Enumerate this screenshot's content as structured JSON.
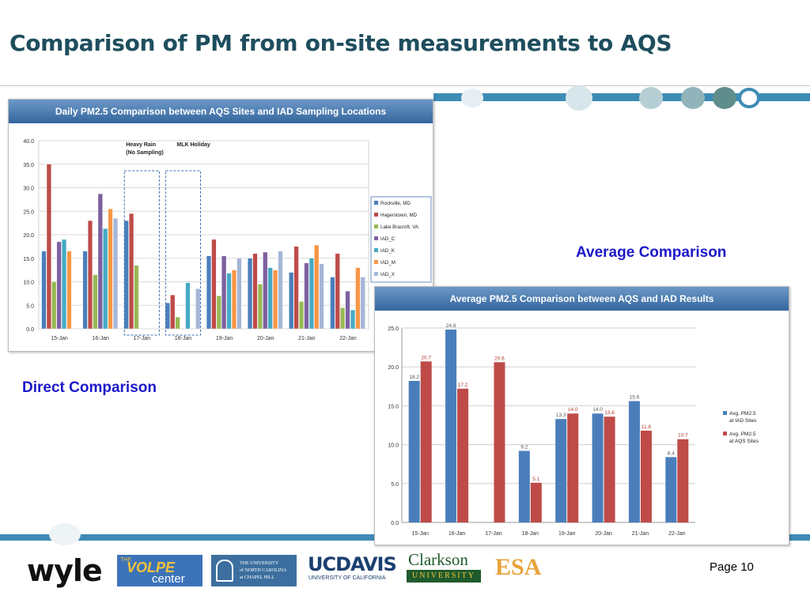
{
  "slide": {
    "title": "Comparison of PM from on-site measurements to AQS",
    "page": "Page 10",
    "caption_direct": "Direct Comparison",
    "caption_average": "Average Comparison"
  },
  "logos": {
    "wyle": "wyle",
    "volpe_the": "THE",
    "volpe": "VOLPE",
    "volpe_center": "center",
    "unc_line1": "THE UNIVERSITY",
    "unc_line2": "of NORTH CAROLINA",
    "unc_line3": "at CHAPEL HILL",
    "ucdavis": "UCDAVIS",
    "ucdavis_sub": "UNIVERSITY OF CALIFORNIA",
    "clarkson": "Clarkson",
    "clarkson_sub": "UNIVERSITY",
    "esa": "ESA"
  },
  "colors": {
    "title": "#1e4e5e",
    "accent_band": "#3d8bb5",
    "caption": "#1c19c8",
    "header_blue": "#34669d"
  },
  "chart_data": [
    {
      "type": "bar",
      "title": "Daily PM2.5 Comparison  between AQS Sites and IAD Sampling Locations",
      "categories": [
        "15-Jan",
        "16-Jan",
        "17-Jan",
        "18-Jan",
        "19-Jan",
        "20-Jan",
        "21-Jan",
        "22-Jan"
      ],
      "ylim": [
        0,
        40
      ],
      "yticks": [
        "0.0",
        "5.0",
        "10.0",
        "15.0",
        "20.0",
        "25.0",
        "30.0",
        "35.0",
        "40.0"
      ],
      "grid": true,
      "legend_position": "right",
      "series": [
        {
          "name": "Rockville, MD",
          "color": "#4a7ebb",
          "values": [
            16.5,
            16.5,
            23.0,
            5.5,
            15.5,
            15.0,
            12.0,
            11.0
          ]
        },
        {
          "name": "Hagerstown, MD",
          "color": "#be4b48",
          "values": [
            35.0,
            23.0,
            24.5,
            7.2,
            19.0,
            16.0,
            17.5,
            16.0
          ]
        },
        {
          "name": "Lake Bracroft, VA",
          "color": "#98b954",
          "values": [
            10.0,
            11.5,
            13.5,
            2.5,
            7.0,
            9.5,
            5.8,
            4.5
          ]
        },
        {
          "name": "IAD_C",
          "color": "#7d60a0",
          "values": [
            18.5,
            28.7,
            null,
            null,
            15.5,
            16.3,
            14.0,
            8.0
          ]
        },
        {
          "name": "IAD_K",
          "color": "#46aac5",
          "values": [
            19.0,
            21.3,
            null,
            9.8,
            11.8,
            13.0,
            15.0,
            4.0
          ]
        },
        {
          "name": "IAD_M",
          "color": "#f79646",
          "values": [
            16.5,
            25.5,
            null,
            null,
            12.5,
            12.5,
            17.8,
            13.0
          ]
        },
        {
          "name": "IAD_X",
          "color": "#a5b6d7",
          "values": [
            null,
            23.5,
            null,
            8.5,
            15.0,
            16.5,
            13.8,
            11.0
          ]
        }
      ],
      "annotations": [
        {
          "category": "17-Jan",
          "line1": "Heavy Rain",
          "line2": "(No Sampling)"
        },
        {
          "category": "18-Jan",
          "line1": "MLK Holiday",
          "line2": ""
        }
      ]
    },
    {
      "type": "bar",
      "title": "Average PM2.5 Comparison  between AQS and IAD Results",
      "categories": [
        "15-Jan",
        "16-Jan",
        "17-Jan",
        "18-Jan",
        "19-Jan",
        "20-Jan",
        "21-Jan",
        "22-Jan"
      ],
      "ylim": [
        0,
        25
      ],
      "yticks": [
        "0.0",
        "5.0",
        "10.0",
        "15.0",
        "20.0",
        "25.0"
      ],
      "grid": true,
      "legend_position": "right",
      "series": [
        {
          "name": "Avg. PM2.5 at IAD Sites",
          "legend_line1": "Avg. PM2.5",
          "legend_line2": "at IAD Sites",
          "color": "#4a7ebb",
          "values": [
            18.2,
            24.8,
            null,
            9.2,
            13.3,
            14.0,
            15.6,
            8.4
          ],
          "labels": [
            "18.2",
            "24.8",
            "",
            "9.2",
            "13.3",
            "14.0",
            "15.6",
            "8.4"
          ]
        },
        {
          "name": "Avg. PM2.5 at AQS Sites",
          "legend_line1": "Avg. PM2.5",
          "legend_line2": "at AQS Sites",
          "color": "#be4b48",
          "values": [
            20.7,
            17.2,
            20.6,
            5.1,
            14.0,
            13.6,
            11.8,
            10.7
          ],
          "labels": [
            "20.7",
            "17.2",
            "20.6",
            "5.1",
            "14.0",
            "13.6",
            "11.8",
            "10.7"
          ]
        }
      ]
    }
  ]
}
